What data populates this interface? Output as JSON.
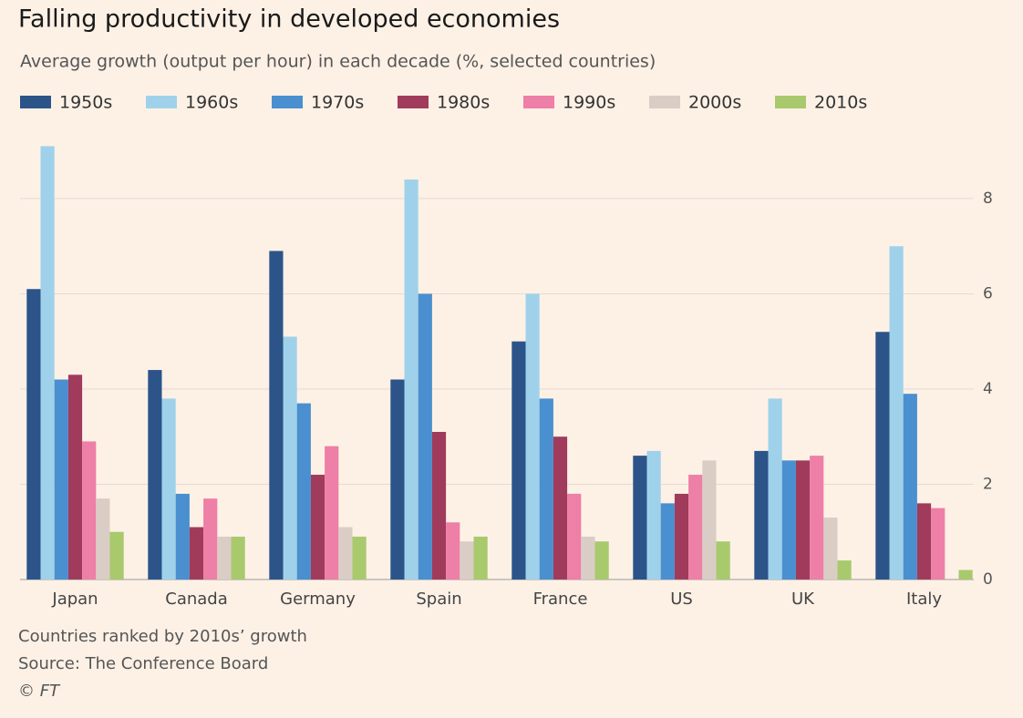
{
  "chart_data": {
    "type": "bar",
    "title": "Falling productivity in developed economies",
    "subtitle": "Average growth (output per hour) in each decade (%, selected countries)",
    "categories": [
      "Japan",
      "Canada",
      "Germany",
      "Spain",
      "France",
      "US",
      "UK",
      "Italy"
    ],
    "series": [
      {
        "name": "1950s",
        "color": "#2c5489",
        "values": [
          6.1,
          4.4,
          6.9,
          4.2,
          5.0,
          2.6,
          2.7,
          5.2
        ]
      },
      {
        "name": "1960s",
        "color": "#9fd2ea",
        "values": [
          9.1,
          3.8,
          5.1,
          8.4,
          6.0,
          2.7,
          3.8,
          7.0
        ]
      },
      {
        "name": "1970s",
        "color": "#4a8fcf",
        "values": [
          4.2,
          1.8,
          3.7,
          6.0,
          3.8,
          1.6,
          2.5,
          3.9
        ]
      },
      {
        "name": "1980s",
        "color": "#a03b5c",
        "values": [
          4.3,
          1.1,
          2.2,
          3.1,
          3.0,
          1.8,
          2.5,
          1.6
        ]
      },
      {
        "name": "1990s",
        "color": "#ee7fa6",
        "values": [
          2.9,
          1.7,
          2.8,
          1.2,
          1.8,
          2.2,
          2.6,
          1.5
        ]
      },
      {
        "name": "2000s",
        "color": "#d9cdc5",
        "values": [
          1.7,
          0.9,
          1.1,
          0.8,
          0.9,
          2.5,
          1.3,
          null
        ]
      },
      {
        "name": "2010s",
        "color": "#a9c96d",
        "values": [
          1.0,
          0.9,
          0.9,
          0.9,
          0.8,
          0.8,
          0.4,
          0.2
        ]
      }
    ],
    "ylim": [
      0,
      9.3
    ],
    "yticks": [
      0,
      2,
      4,
      6,
      8
    ],
    "grid": true,
    "notes": [
      "Countries ranked by 2010s’ growth",
      "Source: The Conference Board",
      "© FT"
    ]
  }
}
